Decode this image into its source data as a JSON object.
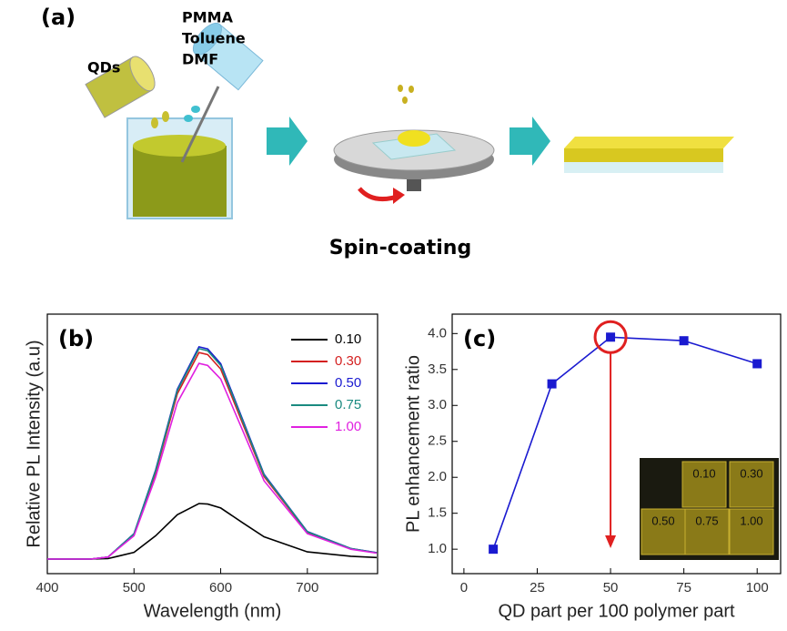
{
  "panel_a": {
    "label": "(a)",
    "bottle_label": "QDs",
    "solvents": [
      "PMMA",
      "Toluene",
      "DMF"
    ],
    "caption": "Spin-coating"
  },
  "chart_data": [
    {
      "type": "line",
      "panel_label": "(b)",
      "x_label": "Wavelength (nm)",
      "y_label": "Relative PL Intensity (a.u)",
      "x": [
        400,
        450,
        470,
        500,
        525,
        550,
        575,
        585,
        600,
        625,
        650,
        700,
        750,
        780
      ],
      "xlim": [
        400,
        781
      ],
      "xticks": [
        400,
        500,
        600,
        700
      ],
      "ylim": [
        0,
        1
      ],
      "legend": "top-right",
      "series": [
        {
          "name": "0.10",
          "color": "#000000",
          "values": [
            0.056,
            0.056,
            0.058,
            0.082,
            0.146,
            0.227,
            0.27,
            0.268,
            0.253,
            0.197,
            0.142,
            0.084,
            0.067,
            0.062
          ]
        },
        {
          "name": "0.30",
          "color": "#d42020",
          "values": [
            0.056,
            0.056,
            0.064,
            0.152,
            0.39,
            0.693,
            0.852,
            0.844,
            0.788,
            0.581,
            0.374,
            0.159,
            0.096,
            0.08
          ]
        },
        {
          "name": "0.50",
          "color": "#1a1ad0",
          "values": [
            0.056,
            0.056,
            0.064,
            0.154,
            0.4,
            0.71,
            0.874,
            0.866,
            0.809,
            0.596,
            0.383,
            0.162,
            0.097,
            0.081
          ]
        },
        {
          "name": "0.75",
          "color": "#1a8a80",
          "values": [
            0.056,
            0.056,
            0.064,
            0.153,
            0.397,
            0.705,
            0.867,
            0.859,
            0.802,
            0.591,
            0.38,
            0.161,
            0.097,
            0.08
          ]
        },
        {
          "name": "1.00",
          "color": "#e020e0",
          "values": [
            0.056,
            0.056,
            0.064,
            0.146,
            0.373,
            0.659,
            0.81,
            0.802,
            0.75,
            0.554,
            0.358,
            0.154,
            0.094,
            0.079
          ]
        }
      ]
    },
    {
      "type": "line",
      "panel_label": "(c)",
      "x_label": "QD part per 100 polymer part",
      "y_label": "PL enhancement ratio",
      "x": [
        10,
        30,
        50,
        75,
        100
      ],
      "xlim": [
        -4,
        108
      ],
      "xticks": [
        0,
        25,
        50,
        75,
        100
      ],
      "ylim": [
        0.66,
        4.27
      ],
      "yticks": [
        {
          "value": 1,
          "label": "1.0"
        },
        1.5,
        {
          "value": 2,
          "label": "2.0"
        },
        2.5,
        {
          "value": 3,
          "label": "3.0"
        },
        3.5,
        {
          "value": 4,
          "label": "4.0"
        }
      ],
      "series": [
        {
          "name": "PL enhancement ratio",
          "color": "#1a1ad0",
          "values": [
            1.0,
            3.3,
            3.95,
            3.9,
            3.58
          ]
        }
      ],
      "inset_labels": [
        "0.10",
        "0.30",
        "0.50",
        "0.75",
        "1.00"
      ]
    }
  ]
}
